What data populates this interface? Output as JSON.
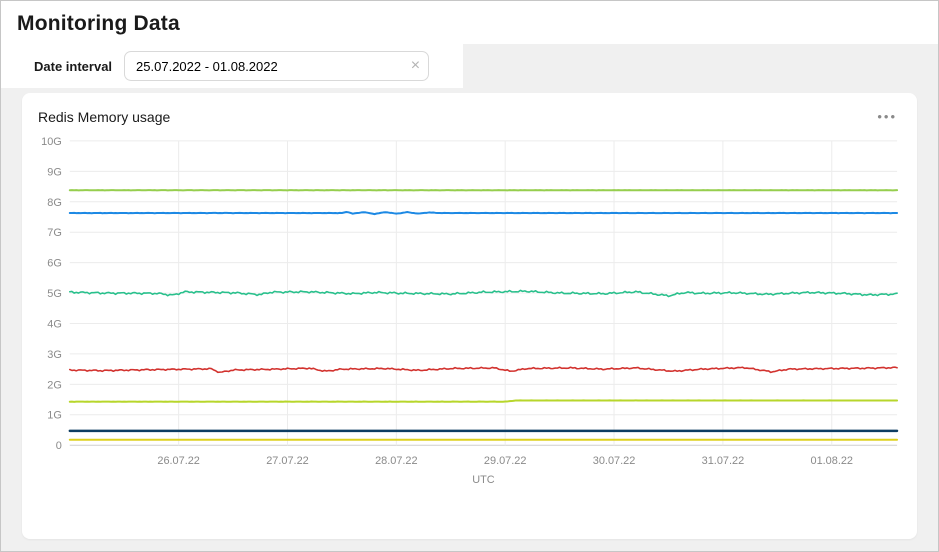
{
  "page": {
    "title": "Monitoring Data"
  },
  "filter": {
    "label": "Date interval",
    "value": "25.07.2022 - 01.08.2022",
    "clear_icon": "×"
  },
  "card": {
    "title": "Redis Memory usage",
    "menu_icon": "•••"
  },
  "chart_data": {
    "type": "line",
    "title": "Redis Memory usage",
    "xlabel": "UTC",
    "ylabel": "",
    "grid": true,
    "legend": "none",
    "xlim": [
      0,
      7.6
    ],
    "ylim": [
      0,
      10
    ],
    "x_unit": "days since 25.07.2022 00:00 UTC",
    "x_ticks": {
      "values": [
        1,
        2,
        3,
        4,
        5,
        6,
        7
      ],
      "labels": [
        "26.07.22",
        "27.07.22",
        "28.07.22",
        "29.07.22",
        "30.07.22",
        "31.07.22",
        "01.08.22"
      ]
    },
    "y_ticks": {
      "values": [
        0,
        1,
        2,
        3,
        4,
        5,
        6,
        7,
        8,
        9,
        10
      ],
      "labels": [
        "0",
        "1G",
        "2G",
        "3G",
        "4G",
        "5G",
        "6G",
        "7G",
        "8G",
        "9G",
        "10G"
      ]
    },
    "colors": {
      "grid": "#ececec",
      "zero_line": "#cfcfcf",
      "tick_text": "#8a8a8a"
    },
    "series": [
      {
        "id": "memory-8.4G-flat",
        "color": "#96ce4e",
        "width": 2,
        "jitter": 0.003,
        "points": [
          [
            0,
            8.38
          ],
          [
            7.6,
            8.38
          ]
        ]
      },
      {
        "id": "memory-7.6G-flat-with-fuzz",
        "color": "#1d89e4",
        "width": 2,
        "jitter": 0.004,
        "points": [
          [
            0,
            7.63
          ],
          [
            2.5,
            7.63
          ],
          [
            2.55,
            7.67
          ],
          [
            2.6,
            7.61
          ],
          [
            2.7,
            7.66
          ],
          [
            2.8,
            7.6
          ],
          [
            2.9,
            7.66
          ],
          [
            3.0,
            7.61
          ],
          [
            3.1,
            7.66
          ],
          [
            3.2,
            7.61
          ],
          [
            3.3,
            7.65
          ],
          [
            3.4,
            7.63
          ],
          [
            7.6,
            7.63
          ]
        ]
      },
      {
        "id": "memory-5.0G-noisy",
        "color": "#29c08c",
        "width": 1.6,
        "jitter": 0.03,
        "points": [
          [
            0,
            5.03
          ],
          [
            0.3,
            5.0
          ],
          [
            0.8,
            4.99
          ],
          [
            0.95,
            4.93
          ],
          [
            1.05,
            5.04
          ],
          [
            1.5,
            5.01
          ],
          [
            1.75,
            4.95
          ],
          [
            1.85,
            5.03
          ],
          [
            2.2,
            5.04
          ],
          [
            2.6,
            4.98
          ],
          [
            2.8,
            5.02
          ],
          [
            3.1,
            4.99
          ],
          [
            3.5,
            4.97
          ],
          [
            3.8,
            5.03
          ],
          [
            4.2,
            5.06
          ],
          [
            4.5,
            5.0
          ],
          [
            4.9,
            4.98
          ],
          [
            5.2,
            5.04
          ],
          [
            5.5,
            4.91
          ],
          [
            5.65,
            5.02
          ],
          [
            5.8,
            4.99
          ],
          [
            6.1,
            5.01
          ],
          [
            6.4,
            4.96
          ],
          [
            6.8,
            5.02
          ],
          [
            7.1,
            4.99
          ],
          [
            7.35,
            4.94
          ],
          [
            7.6,
            4.97
          ]
        ]
      },
      {
        "id": "memory-2.5G-noisy-rising",
        "color": "#d2322e",
        "width": 1.6,
        "jitter": 0.022,
        "points": [
          [
            0,
            2.47
          ],
          [
            0.3,
            2.45
          ],
          [
            0.7,
            2.48
          ],
          [
            1.1,
            2.5
          ],
          [
            1.3,
            2.51
          ],
          [
            1.38,
            2.39
          ],
          [
            1.5,
            2.47
          ],
          [
            1.9,
            2.5
          ],
          [
            2.2,
            2.53
          ],
          [
            2.35,
            2.43
          ],
          [
            2.5,
            2.5
          ],
          [
            2.9,
            2.52
          ],
          [
            3.2,
            2.46
          ],
          [
            3.5,
            2.52
          ],
          [
            3.9,
            2.54
          ],
          [
            4.05,
            2.43
          ],
          [
            4.2,
            2.52
          ],
          [
            4.6,
            2.54
          ],
          [
            4.9,
            2.5
          ],
          [
            5.2,
            2.54
          ],
          [
            5.55,
            2.43
          ],
          [
            5.8,
            2.5
          ],
          [
            6.2,
            2.55
          ],
          [
            6.45,
            2.41
          ],
          [
            6.6,
            2.5
          ],
          [
            7.0,
            2.52
          ],
          [
            7.3,
            2.53
          ],
          [
            7.6,
            2.55
          ]
        ]
      },
      {
        "id": "memory-1.45G-step",
        "color": "#b7d62b",
        "width": 2,
        "jitter": 0.003,
        "points": [
          [
            0,
            1.43
          ],
          [
            4.0,
            1.43
          ],
          [
            4.1,
            1.47
          ],
          [
            7.6,
            1.47
          ]
        ]
      },
      {
        "id": "memory-0.45G-flat",
        "color": "#0d3c61",
        "width": 2.4,
        "jitter": 0,
        "points": [
          [
            0,
            0.47
          ],
          [
            7.6,
            0.47
          ]
        ]
      },
      {
        "id": "memory-0.18G-flat",
        "color": "#ddd01e",
        "width": 2,
        "jitter": 0,
        "points": [
          [
            0,
            0.18
          ],
          [
            7.6,
            0.18
          ]
        ]
      }
    ]
  }
}
